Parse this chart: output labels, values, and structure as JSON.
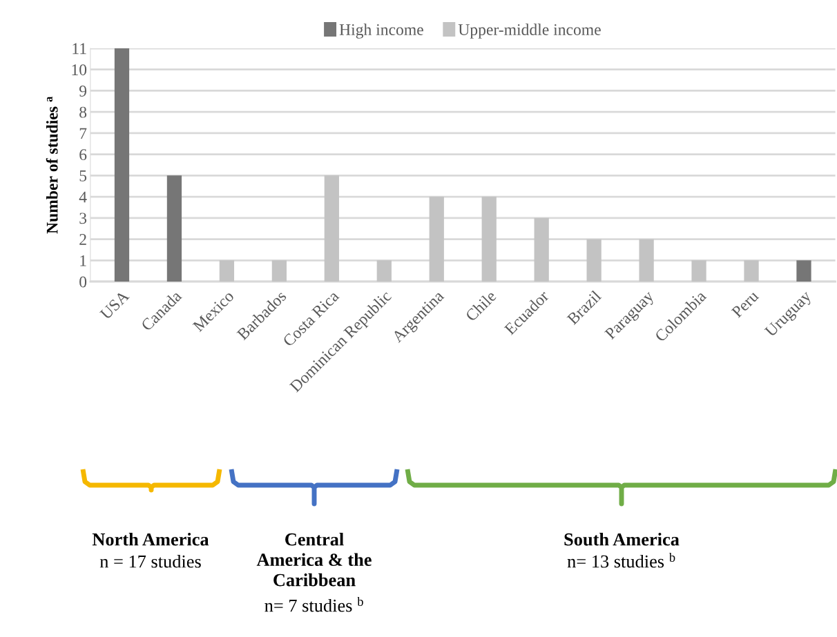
{
  "chart_data": {
    "type": "bar",
    "ylabel": "Number of studies $^{a}$",
    "categories": [
      "USA",
      "Canada",
      "Mexico",
      "Barbados",
      "Costa Rica",
      "Dominican Republic",
      "Argentina",
      "Chile",
      "Ecuador",
      "Brazil",
      "Paraguay",
      "Colombia",
      "Peru",
      "Uruguay"
    ],
    "series": [
      {
        "name": "High income",
        "color": "#767676",
        "values": [
          11,
          5,
          null,
          null,
          null,
          null,
          null,
          null,
          null,
          null,
          null,
          null,
          null,
          1
        ]
      },
      {
        "name": "Upper-middle income",
        "color": "#c3c3c3",
        "values": [
          null,
          null,
          1,
          1,
          5,
          1,
          4,
          4,
          3,
          2,
          2,
          1,
          1,
          null
        ]
      }
    ],
    "ylim": [
      0,
      11
    ],
    "yticks": [
      0,
      1,
      2,
      3,
      4,
      5,
      6,
      7,
      8,
      9,
      10,
      11
    ],
    "grid": "y",
    "legend": "top",
    "annotations": [
      "North America",
      "n = 17 studies",
      "Central\nAmerica & the\nCaribbean",
      "n= 7 studies $^{b}$",
      "South America",
      "n= 13 studies $^{b}$"
    ]
  }
}
